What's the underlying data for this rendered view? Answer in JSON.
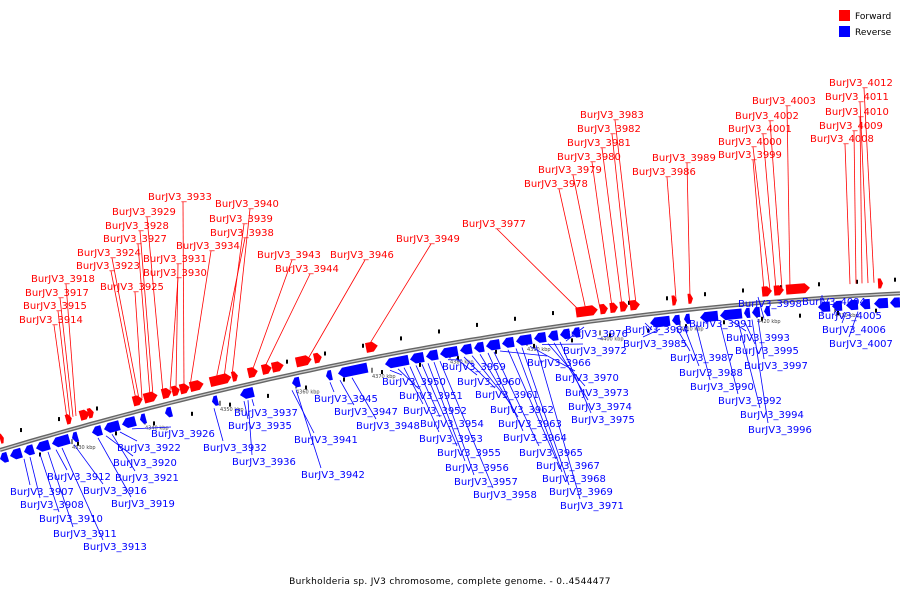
{
  "caption": "Burkholderia sp. JV3 chromosome, complete genome. - 0..4544477",
  "legend": [
    {
      "label": "Forward",
      "color": "#ff0000"
    },
    {
      "label": "Reverse",
      "color": "#0000ff"
    }
  ],
  "colors": {
    "forward": "#ff0000",
    "reverse": "#0000ff",
    "backbone": "#888888"
  },
  "ticks": [
    "4330 kbp",
    "4340 kbp",
    "4350 kbp",
    "4360 kbp",
    "4370 kbp",
    "4380 kbp",
    "4390 kbp",
    "4400 kbp",
    "4410 kbp",
    "4420 kbp",
    "4430 kbp"
  ],
  "forward_labels": [
    "BurJV3_3914",
    "BurJV3_3915",
    "BurJV3_3917",
    "BurJV3_3918",
    "BurJV3_3923",
    "BurJV3_3924",
    "BurJV3_3925",
    "BurJV3_3927",
    "BurJV3_3928",
    "BurJV3_3929",
    "BurJV3_3930",
    "BurJV3_3931",
    "BurJV3_3933",
    "BurJV3_3934",
    "BurJV3_3938",
    "BurJV3_3939",
    "BurJV3_3940",
    "BurJV3_3943",
    "BurJV3_3944",
    "BurJV3_3946",
    "BurJV3_3949",
    "BurJV3_3977",
    "BurJV3_3978",
    "BurJV3_3979",
    "BurJV3_3980",
    "BurJV3_3981",
    "BurJV3_3982",
    "BurJV3_3983",
    "BurJV3_3986",
    "BurJV3_3989",
    "BurJV3_3999",
    "BurJV3_4000",
    "BurJV3_4001",
    "BurJV3_4002",
    "BurJV3_4003",
    "BurJV3_4008",
    "BurJV3_4009",
    "BurJV3_4010",
    "BurJV3_4011",
    "BurJV3_4012"
  ],
  "reverse_labels": [
    "BurJV3_3907",
    "BurJV3_3908",
    "BurJV3_3910",
    "BurJV3_3911",
    "BurJV3_3912",
    "BurJV3_3913",
    "BurJV3_3916",
    "BurJV3_3919",
    "BurJV3_3920",
    "BurJV3_3921",
    "BurJV3_3922",
    "BurJV3_3926",
    "BurJV3_3932",
    "BurJV3_3935",
    "BurJV3_3936",
    "BurJV3_3937",
    "BurJV3_3941",
    "BurJV3_3942",
    "BurJV3_3945",
    "BurJV3_3947",
    "BurJV3_3948",
    "BurJV3_3950",
    "BurJV3_3951",
    "BurJV3_3952",
    "BurJV3_3953",
    "BurJV3_3954",
    "BurJV3_3955",
    "BurJV3_3956",
    "BurJV3_3957",
    "BurJV3_3958",
    "BurJV3_3959",
    "BurJV3_3960",
    "BurJV3_3961",
    "BurJV3_3962",
    "BurJV3_3963",
    "BurJV3_3964",
    "BurJV3_3965",
    "BurJV3_3966",
    "BurJV3_3967",
    "BurJV3_3968",
    "BurJV3_3969",
    "BurJV3_3970",
    "BurJV3_3971",
    "BurJV3_3972",
    "BurJV3_3973",
    "BurJV3_3974",
    "BurJV3_3975",
    "BurJV3_3976",
    "BurJV3_3984",
    "BurJV3_3985",
    "BurJV3_3987",
    "BurJV3_3988",
    "BurJV3_3990",
    "BurJV3_3991",
    "BurJV3_3992",
    "BurJV3_3993",
    "BurJV3_3994",
    "BurJV3_3995",
    "BurJV3_3996",
    "BurJV3_3997",
    "BurJV3_3998",
    "BurJV3_4004",
    "BurJV3_4005",
    "BurJV3_4006",
    "BurJV3_4007"
  ]
}
